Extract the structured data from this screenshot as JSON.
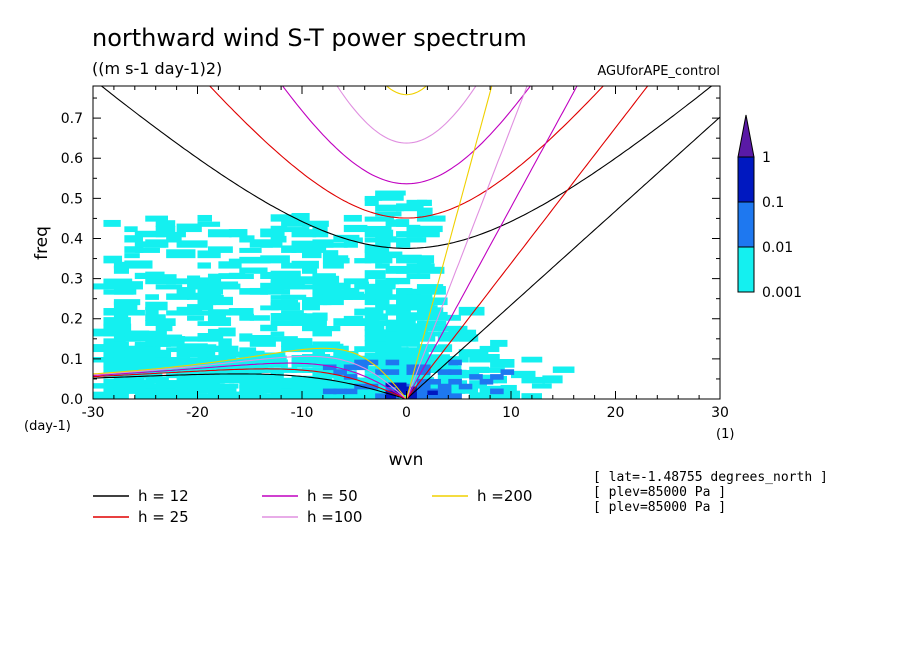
{
  "chart_data": {
    "type": "heatmap",
    "title": "northward wind S-T power spectrum",
    "units": "((m s-1 day-1)2)",
    "run_label": "AGUforAPE_control",
    "xlabel": "wvn",
    "ylabel": "freq",
    "x_unit": "(1)",
    "y_unit": "(day-1)",
    "xlim": [
      -30,
      30
    ],
    "ylim": [
      0,
      0.78
    ],
    "x_ticks": [
      -30,
      -20,
      -10,
      0,
      10,
      20,
      30
    ],
    "x_tick_labels": [
      "-30",
      "-20",
      "-10",
      "0",
      "10",
      "20",
      "30"
    ],
    "y_ticks": [
      0.0,
      0.1,
      0.2,
      0.3,
      0.4,
      0.5,
      0.6,
      0.7
    ],
    "y_tick_labels": [
      "0.0",
      "0.1",
      "0.2",
      "0.3",
      "0.4",
      "0.5",
      "0.6",
      "0.7"
    ],
    "colorbar": {
      "levels": [
        "1",
        "0.1",
        "0.01",
        "0.001"
      ],
      "colors": [
        "#5a1aa6",
        "#0018c0",
        "#1e78f0",
        "#14f0f0"
      ],
      "extend": "max"
    },
    "shading_regions": [
      {
        "level": 0.001,
        "color": "#14f0f0",
        "region": "broad patchy power over wvn -30 to 14, freq 0 to 0.5, densest at low frequency"
      },
      {
        "level": 0.01,
        "color": "#1e78f0",
        "region": "small patches near wvn -5 to 12, freq below 0.1"
      },
      {
        "level": 0.1,
        "color": "#0018c0",
        "region": "isolated cells near wvn -2 to 3, freq below 0.05"
      }
    ],
    "dispersion_curves": [
      {
        "name": "h = 12",
        "color": "#000000",
        "equivalent_depth": 12
      },
      {
        "name": "h = 25",
        "color": "#e00000",
        "equivalent_depth": 25
      },
      {
        "name": "h = 50",
        "color": "#c000c0",
        "equivalent_depth": 50
      },
      {
        "name": "h =100",
        "color": "#e090e0",
        "equivalent_depth": 100
      },
      {
        "name": "h =200",
        "color": "#f0d000",
        "equivalent_depth": 200
      }
    ],
    "info": [
      "[ lat=-1.48755 degrees_north ]",
      "[ plev=85000 Pa ]",
      "[ plev=85000 Pa ]"
    ]
  }
}
